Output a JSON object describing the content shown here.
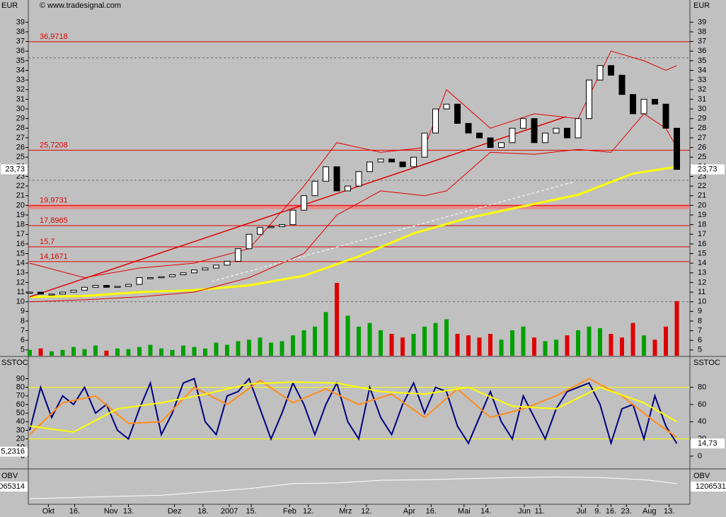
{
  "watermark": "© www.tradesignal.com",
  "chart_data": [
    {
      "type": "candlestick",
      "axis_label": "EUR",
      "xlim": [
        0,
        60
      ],
      "xticks": [
        {
          "value": 1.7,
          "label": "Okt"
        },
        {
          "value": 4.1,
          "label": "16."
        },
        {
          "value": 7.4,
          "label": "Nov"
        },
        {
          "value": 9.0,
          "label": "13."
        },
        {
          "value": 13.2,
          "label": "Dez"
        },
        {
          "value": 15.8,
          "label": "18."
        },
        {
          "value": 18.2,
          "label": "2007"
        },
        {
          "value": 20.2,
          "label": "15."
        },
        {
          "value": 23.7,
          "label": "Feb"
        },
        {
          "value": 25.4,
          "label": "12."
        },
        {
          "value": 28.8,
          "label": "Mrz"
        },
        {
          "value": 30.7,
          "label": "12."
        },
        {
          "value": 34.6,
          "label": "Apr"
        },
        {
          "value": 36.6,
          "label": "16."
        },
        {
          "value": 39.6,
          "label": "Mai"
        },
        {
          "value": 41.6,
          "label": "14."
        },
        {
          "value": 45.1,
          "label": "Jun"
        },
        {
          "value": 46.5,
          "label": "11."
        },
        {
          "value": 50.3,
          "label": "Jul"
        },
        {
          "value": 51.8,
          "label": "9."
        },
        {
          "value": 53.0,
          "label": "16."
        },
        {
          "value": 54.4,
          "label": "23."
        },
        {
          "value": 56.5,
          "label": "Aug"
        },
        {
          "value": 58.3,
          "label": "13."
        }
      ],
      "ylim": [
        4.4,
        41.3
      ],
      "yticks": [
        5,
        6,
        7,
        8,
        9,
        10,
        11,
        12,
        13,
        14,
        15,
        16,
        17,
        18,
        19,
        20,
        21,
        22,
        23,
        24,
        25,
        26,
        27,
        28,
        29,
        30,
        31,
        32,
        33,
        34,
        35,
        36,
        37,
        38,
        39
      ],
      "x": [
        0,
        1,
        2,
        3,
        4,
        5,
        6,
        7,
        8,
        9,
        10,
        11,
        12,
        13,
        14,
        15,
        16,
        17,
        18,
        19,
        20,
        21,
        22,
        23,
        24,
        25,
        26,
        27,
        28,
        29,
        30,
        31,
        32,
        33,
        34,
        35,
        36,
        37,
        38,
        39,
        40,
        41,
        42,
        43,
        44,
        45,
        46,
        47,
        48,
        49,
        50,
        51,
        52,
        53,
        54,
        55,
        56,
        57,
        58,
        59
      ],
      "values": [
        11.0,
        10.8,
        10.8,
        11,
        11.2,
        11.5,
        11.7,
        11.5,
        11.6,
        11.8,
        12.5,
        12.5,
        12.6,
        12.8,
        13.0,
        13.3,
        13.5,
        13.8,
        14.2,
        15.5,
        17.0,
        17.7,
        17.8,
        18.0,
        19.5,
        21.0,
        22.5,
        24.0,
        21.5,
        22.0,
        23.5,
        24.5,
        24.8,
        24.5,
        24.0,
        25.0,
        27.5,
        30.0,
        30.5,
        28.5,
        27.5,
        27.0,
        26.0,
        26.5,
        28.0,
        29.0,
        26.5,
        27.5,
        28.0,
        27.0,
        29.0,
        33.0,
        34.5,
        33.5,
        31.5,
        29.5,
        31.0,
        30.5,
        28.0,
        23.73
      ],
      "up_color": "#ffffff",
      "down_color": "#000000",
      "last_price": {
        "value": 23.73,
        "label": "23,73"
      },
      "levels": [
        {
          "value": 36.9718,
          "label": "36,9718"
        },
        {
          "value": 25.7208,
          "label": "25,7208"
        },
        {
          "value": 19.9731,
          "label": "19,9731"
        },
        {
          "value": 17.8965,
          "label": "17,8965"
        },
        {
          "value": 15.7,
          "label": "15,7"
        },
        {
          "value": 14.1671,
          "label": "14,1671"
        }
      ],
      "level_color": "#e00000",
      "zone": [
        19.6,
        20.1
      ],
      "ref_lines": [
        35.3,
        22.6,
        10
      ],
      "overlays": [
        {
          "color": "#ffff00",
          "width": 3,
          "x": [
            0,
            5,
            10,
            15,
            20,
            25,
            30,
            35,
            40,
            45,
            50,
            55,
            59
          ],
          "values": [
            10.5,
            10.6,
            11.0,
            11.2,
            11.7,
            12.7,
            14.7,
            17.1,
            18.7,
            19.9,
            21.1,
            23.3,
            24.0
          ]
        },
        {
          "color": "#e00000",
          "width": 1,
          "x": [
            0,
            5,
            10,
            15,
            20,
            25,
            28,
            32,
            36,
            38,
            42,
            46,
            50,
            53,
            56,
            58,
            59
          ],
          "values": [
            14,
            12.5,
            13.5,
            14,
            15.5,
            22,
            26.5,
            25.5,
            26,
            32,
            28,
            29.5,
            29,
            36,
            35,
            34,
            34.5
          ]
        },
        {
          "color": "#e00000",
          "width": 1,
          "x": [
            0,
            5,
            10,
            15,
            20,
            25,
            28,
            32,
            36,
            38,
            42,
            46,
            50,
            53,
            56,
            58,
            59
          ],
          "values": [
            10,
            10.2,
            10.5,
            11,
            12.5,
            15,
            19,
            21.5,
            21,
            21.5,
            25.5,
            25.3,
            25.8,
            25.5,
            29.5,
            28,
            26
          ]
        },
        {
          "color": "#e00000",
          "width": 1.5,
          "x": [
            0,
            48.9
          ],
          "values": [
            10.5,
            29.2
          ]
        },
        {
          "color": "#ffffff",
          "width": 1,
          "dash": "4 3",
          "x": [
            16.6,
            49.5
          ],
          "values": [
            12.1,
            22.4
          ]
        }
      ],
      "volume": {
        "ylim": [
          0,
          100
        ],
        "up_color": "#00a000",
        "down_color": "#e00000",
        "values": [
          8,
          10,
          6,
          8,
          12,
          9,
          14,
          7,
          10,
          9,
          12,
          15,
          10,
          8,
          14,
          12,
          10,
          18,
          15,
          20,
          22,
          25,
          18,
          20,
          28,
          35,
          40,
          60,
          100,
          55,
          40,
          45,
          35,
          30,
          25,
          30,
          40,
          45,
          50,
          30,
          28,
          25,
          30,
          22,
          35,
          40,
          25,
          20,
          22,
          28,
          35,
          40,
          38,
          30,
          25,
          45,
          28,
          22,
          40,
          75
        ]
      }
    },
    {
      "type": "line",
      "axis_label": "SSTOC",
      "ylim": [
        -14,
        115
      ],
      "yticks": [
        0,
        10,
        20,
        30,
        40,
        50,
        60,
        70,
        80,
        90
      ],
      "right_ticks": [
        0,
        20,
        40,
        60,
        80
      ],
      "levels": [
        80,
        20
      ],
      "level_color": "#ffff00",
      "left_value": {
        "value": 5.2316,
        "label": "5,2316"
      },
      "right_value": {
        "value": 14.73,
        "label": "14,73"
      },
      "series": [
        {
          "color": "#00007f",
          "width": 2,
          "x": [
            0,
            1,
            2,
            3,
            4,
            5,
            6,
            7,
            8,
            9,
            10,
            11,
            12,
            13,
            14,
            15,
            16,
            17,
            18,
            19,
            20,
            21,
            22,
            23,
            24,
            25,
            26,
            27,
            28,
            29,
            30,
            31,
            32,
            33,
            34,
            35,
            36,
            37,
            38,
            39,
            40,
            41,
            42,
            43,
            44,
            45,
            46,
            47,
            48,
            49,
            50,
            51,
            52,
            53,
            54,
            55,
            56,
            57,
            58,
            59
          ],
          "values": [
            30,
            80,
            45,
            70,
            60,
            80,
            50,
            60,
            30,
            20,
            55,
            85,
            25,
            50,
            85,
            90,
            40,
            25,
            70,
            75,
            90,
            55,
            20,
            50,
            85,
            60,
            25,
            60,
            85,
            40,
            20,
            80,
            45,
            25,
            60,
            85,
            50,
            80,
            75,
            35,
            15,
            45,
            75,
            40,
            20,
            70,
            45,
            20,
            55,
            75,
            80,
            85,
            60,
            15,
            55,
            60,
            20,
            70,
            35,
            14.73
          ]
        },
        {
          "color": "#ff8c1a",
          "width": 2,
          "x": [
            0,
            3,
            6,
            9,
            12,
            15,
            18,
            21,
            24,
            27,
            30,
            33,
            36,
            39,
            42,
            45,
            48,
            51,
            54,
            57,
            59
          ],
          "values": [
            25,
            62,
            70,
            38,
            40,
            80,
            60,
            88,
            62,
            78,
            60,
            72,
            45,
            78,
            45,
            55,
            70,
            90,
            70,
            40,
            22
          ]
        },
        {
          "color": "#ffff00",
          "width": 2,
          "x": [
            0,
            4,
            8,
            12,
            16,
            20,
            24,
            28,
            32,
            36,
            40,
            44,
            48,
            52,
            56,
            59
          ],
          "values": [
            35,
            28,
            55,
            62,
            72,
            84,
            86,
            85,
            75,
            72,
            80,
            58,
            55,
            80,
            62,
            40
          ]
        }
      ]
    },
    {
      "type": "line",
      "axis_label": "OBV",
      "ylim": [
        0,
        100
      ],
      "left_label": "065314",
      "right_label": "1206531",
      "series": [
        {
          "color": "#ffffff",
          "width": 1,
          "x": [
            0,
            4,
            8,
            12,
            16,
            20,
            24,
            28,
            32,
            36,
            40,
            44,
            48,
            52,
            56,
            59
          ],
          "values": [
            15,
            18,
            22,
            25,
            35,
            45,
            60,
            62,
            70,
            72,
            75,
            78,
            80,
            78,
            72,
            60
          ]
        }
      ]
    }
  ]
}
